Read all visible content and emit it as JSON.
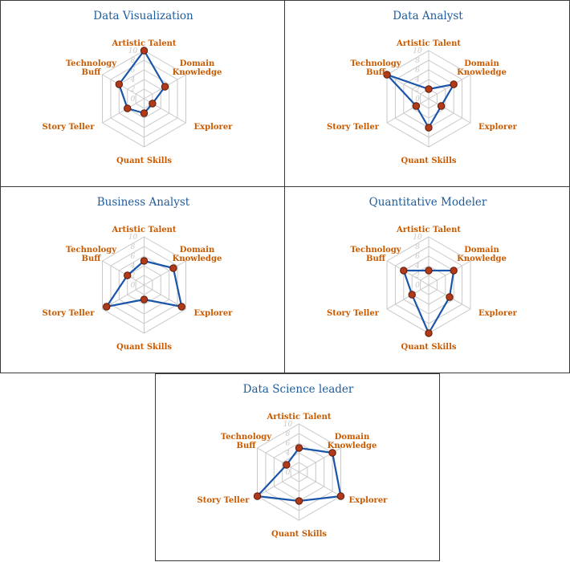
{
  "chart_data": [
    {
      "type": "radar",
      "title": "Data Visualization",
      "axes": [
        "Artistic Talent",
        "Domain Knowledge",
        "Explorer",
        "Quant Skills",
        "Story Teller",
        "Technology Buff"
      ],
      "values": [
        10,
        5,
        2,
        3,
        4,
        6
      ],
      "range": [
        0,
        10
      ],
      "ticks": [
        "0",
        "2",
        "4",
        "6",
        "8",
        "10"
      ]
    },
    {
      "type": "radar",
      "title": "Data Analyst",
      "axes": [
        "Artistic Talent",
        "Domain Knowledge",
        "Explorer",
        "Quant Skills",
        "Story Teller",
        "Technology Buff"
      ],
      "values": [
        2,
        6,
        3,
        6,
        3,
        10
      ],
      "range": [
        0,
        10
      ],
      "ticks": [
        "0",
        "2",
        "4",
        "6",
        "8",
        "10"
      ]
    },
    {
      "type": "radar",
      "title": "Business Analyst",
      "axes": [
        "Artistic Talent",
        "Domain Knowledge",
        "Explorer",
        "Quant Skills",
        "Story Teller",
        "Technology Buff"
      ],
      "values": [
        5,
        7,
        9,
        3,
        9,
        4
      ],
      "range": [
        0,
        10
      ],
      "ticks": [
        "0",
        "2",
        "4",
        "6",
        "8",
        "10"
      ]
    },
    {
      "type": "radar",
      "title": "Quantitative Modeler",
      "axes": [
        "Artistic Talent",
        "Domain Knowledge",
        "Explorer",
        "Quant Skills",
        "Story Teller",
        "Technology Buff"
      ],
      "values": [
        3,
        6,
        5,
        10,
        4,
        6
      ],
      "range": [
        0,
        10
      ],
      "ticks": [
        "0",
        "2",
        "4",
        "6",
        "8",
        "10"
      ]
    },
    {
      "type": "radar",
      "title": "Data Science leader",
      "axes": [
        "Artistic Talent",
        "Domain Knowledge",
        "Explorer",
        "Quant Skills",
        "Story Teller",
        "Technology Buff"
      ],
      "values": [
        5,
        8,
        10,
        6,
        10,
        3
      ],
      "range": [
        0,
        10
      ],
      "ticks": [
        "0",
        "2",
        "4",
        "6",
        "8",
        "10"
      ]
    }
  ],
  "colors": {
    "series": "#1a55a8",
    "point": "#b03a1a",
    "label": "#c85a00",
    "title": "#1f5b9a",
    "grid": "#c8c8c8"
  }
}
